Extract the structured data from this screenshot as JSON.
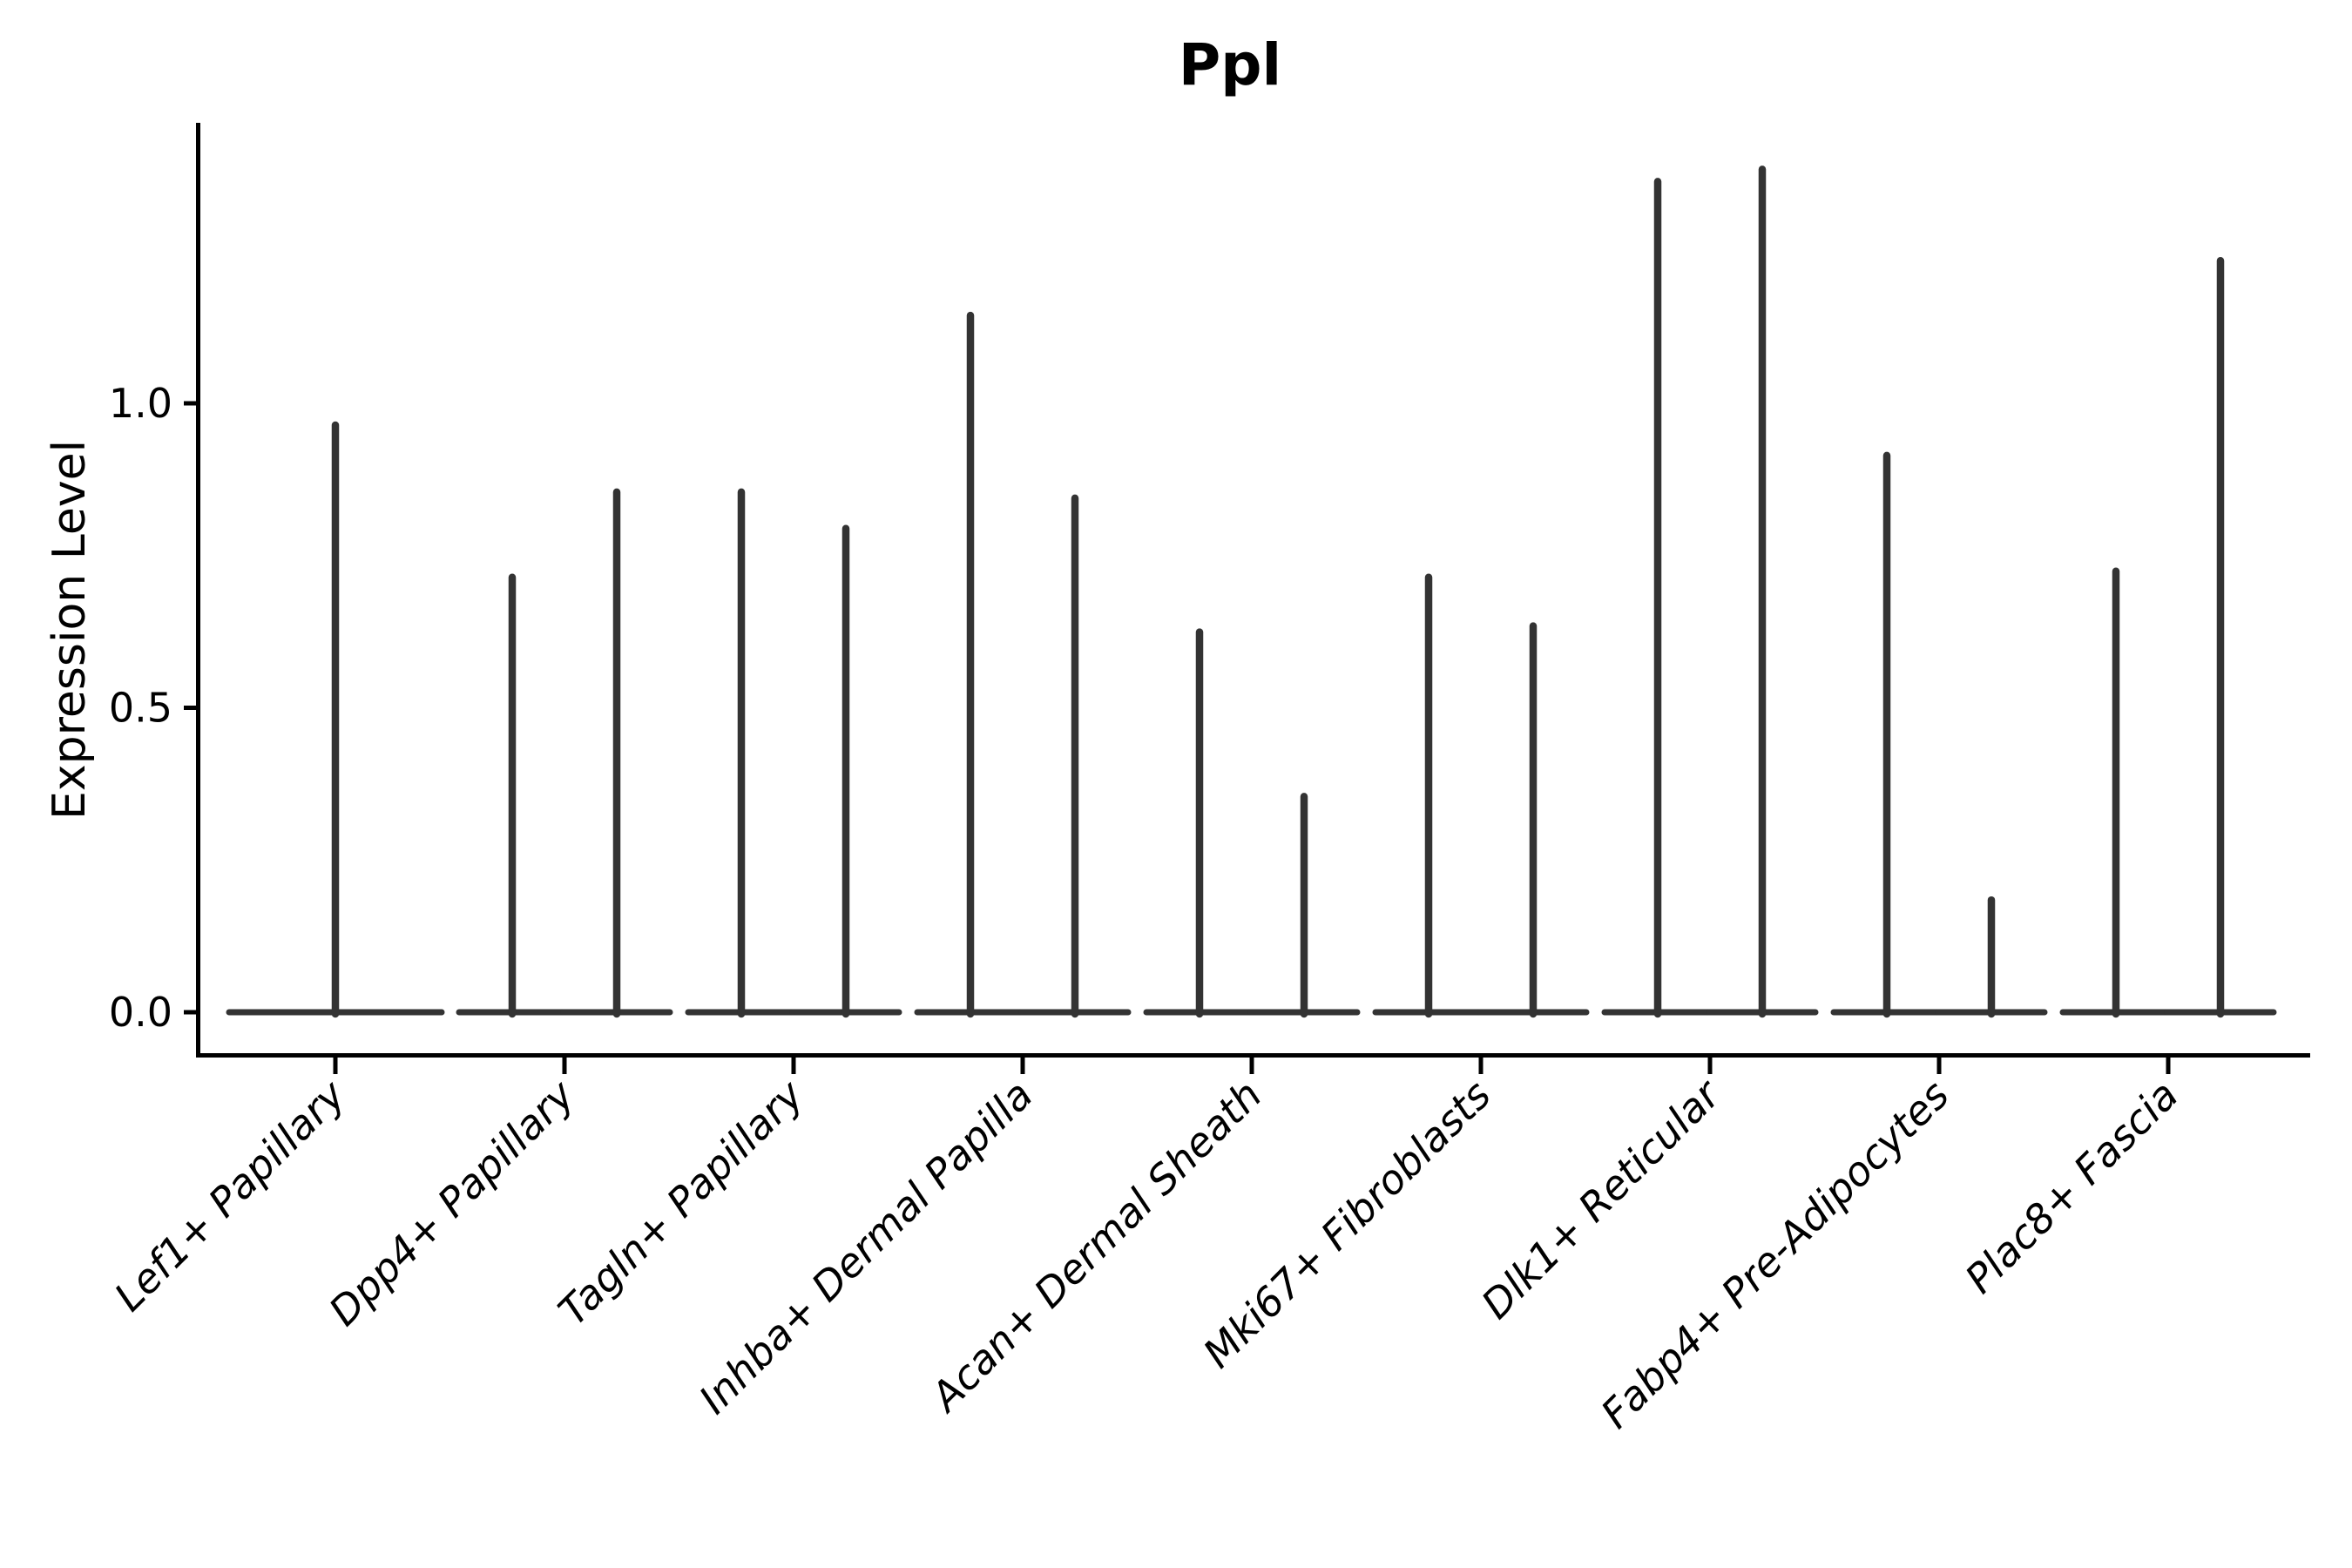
{
  "style": {
    "violin_color": "#333333",
    "axis_color": "#000000",
    "text_color": "#000000",
    "background": "#ffffff"
  },
  "chart_data": {
    "type": "violin",
    "title": "Ppl",
    "ylabel": "Expression Level",
    "xlabel": "",
    "grid": false,
    "legend": null,
    "ylim": [
      -0.07,
      1.46
    ],
    "ytick_values": [
      0.0,
      0.5,
      1.0
    ],
    "ytick_labels": [
      "0.0",
      "0.5",
      "1.0"
    ],
    "categories": [
      "Lef1+ Papillary",
      "Dpp4+ Papillary",
      "Tagln+ Papillary",
      "Inhba+ Dermal Papilla",
      "Acan+ Dermal Sheath",
      "Mki67+ Fibroblasts",
      "Dlk1+ Reticular",
      "Fabp4+ Pre-Adipocytes",
      "Plac8+ Fascia"
    ],
    "violins": [
      {
        "category": "Lef1+ Papillary",
        "spike_max_values": [
          0.97
        ]
      },
      {
        "category": "Dpp4+ Papillary",
        "spike_max_values": [
          0.72,
          0.86
        ]
      },
      {
        "category": "Tagln+ Papillary",
        "spike_max_values": [
          0.86,
          0.8
        ]
      },
      {
        "category": "Inhba+ Dermal Papilla",
        "spike_max_values": [
          1.15,
          0.85
        ]
      },
      {
        "category": "Acan+ Dermal Sheath",
        "spike_max_values": [
          0.63,
          0.36
        ]
      },
      {
        "category": "Mki67+ Fibroblasts",
        "spike_max_values": [
          0.72,
          0.64
        ]
      },
      {
        "category": "Dlk1+ Reticular",
        "spike_max_values": [
          1.37,
          1.39
        ]
      },
      {
        "category": "Fabp4+ Pre-Adipocytes",
        "spike_max_values": [
          0.92,
          0.19
        ]
      },
      {
        "category": "Plac8+ Fascia",
        "spike_max_values": [
          0.73,
          1.24
        ]
      }
    ]
  }
}
